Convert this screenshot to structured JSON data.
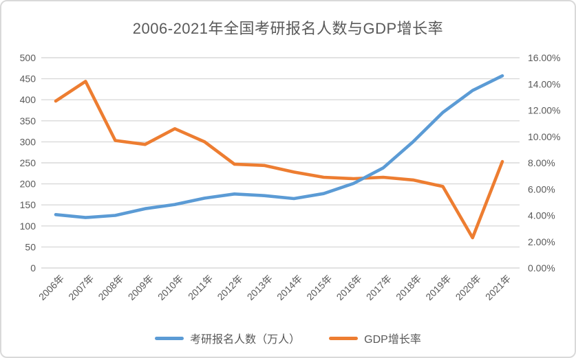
{
  "title": "2006-2021年全国考研报名人数与GDP增长率",
  "legend": {
    "series1": "考研报名人数（万人）",
    "series2": "GDP增长率"
  },
  "colors": {
    "series1": "#5B9BD5",
    "series2": "#ED7D31",
    "gridline": "#D9D9D9",
    "axis_text": "#595959",
    "title_text": "#595959",
    "chart_border": "#D9D9D9",
    "background": "#FFFFFF"
  },
  "chart_data": {
    "type": "line",
    "title": "2006-2021年全国考研报名人数与GDP增长率",
    "categories": [
      "2006年",
      "2007年",
      "2008年",
      "2009年",
      "2010年",
      "2011年",
      "2012年",
      "2013年",
      "2014年",
      "2015年",
      "2016年",
      "2017年",
      "2018年",
      "2019年",
      "2020年",
      "2021年"
    ],
    "series": [
      {
        "name": "考研报名人数（万人）",
        "axis": "left",
        "color": "#5B9BD5",
        "values": [
          127,
          120,
          125,
          141,
          151,
          166,
          176,
          172,
          165,
          177,
          201,
          238,
          300,
          370,
          422,
          457
        ]
      },
      {
        "name": "GDP增长率",
        "axis": "right",
        "color": "#ED7D31",
        "unit": "%",
        "values": [
          12.7,
          14.2,
          9.7,
          9.4,
          10.6,
          9.6,
          7.9,
          7.8,
          7.3,
          6.9,
          6.8,
          6.9,
          6.7,
          6.2,
          2.3,
          8.1
        ]
      }
    ],
    "left_axis": {
      "min": 0,
      "max": 500,
      "step": 50,
      "tick_labels": [
        "0",
        "50",
        "100",
        "150",
        "200",
        "250",
        "300",
        "350",
        "400",
        "450",
        "500"
      ]
    },
    "right_axis": {
      "min": 0,
      "max": 16,
      "step": 2,
      "tick_labels": [
        "0.00%",
        "2.00%",
        "4.00%",
        "6.00%",
        "8.00%",
        "10.00%",
        "12.00%",
        "14.00%",
        "16.00%"
      ]
    },
    "grid": "horizontal-only",
    "legend_position": "bottom",
    "x_tick_rotation": -45
  }
}
